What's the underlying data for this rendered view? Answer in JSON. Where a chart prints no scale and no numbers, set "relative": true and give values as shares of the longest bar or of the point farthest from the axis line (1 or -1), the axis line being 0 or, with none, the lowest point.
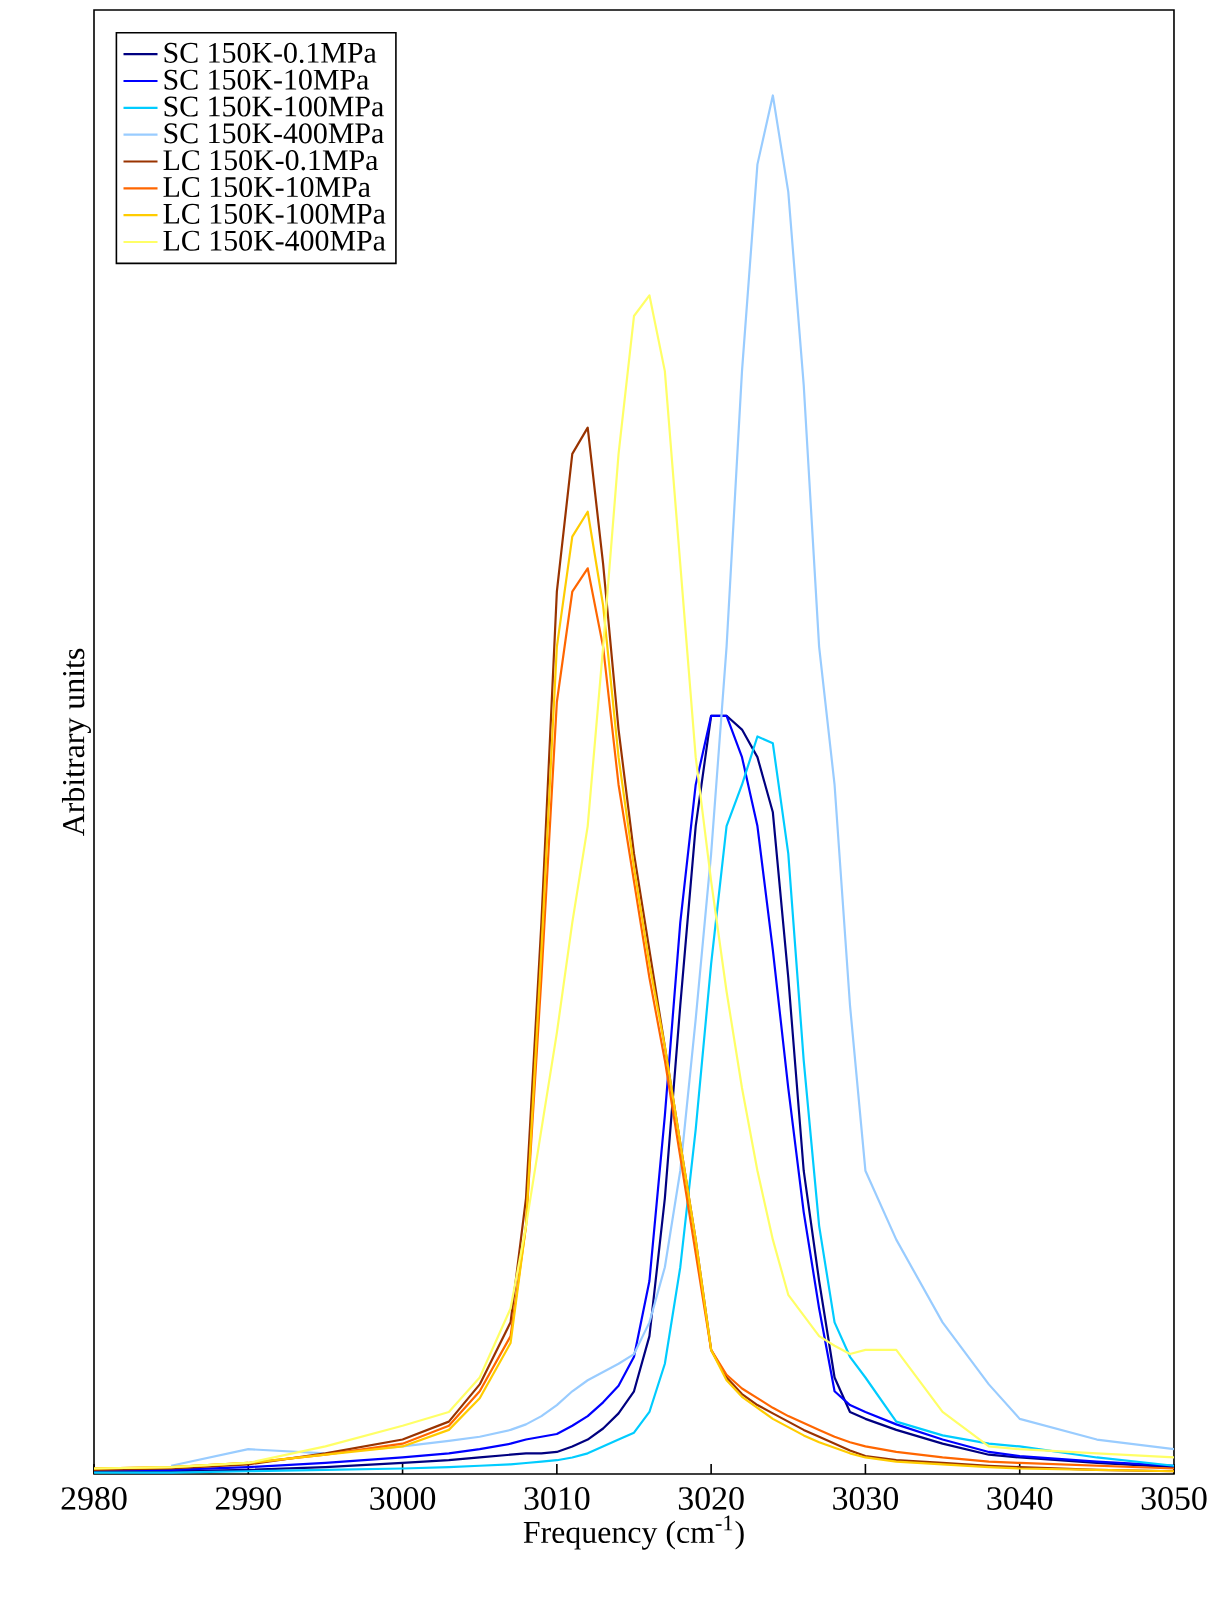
{
  "chart_data": {
    "type": "line",
    "relative": true,
    "xlabel": "Frequency (cm$^{-1}$)",
    "ylabel": "Arbitrary units",
    "legend": "top left",
    "xlim": [
      2980,
      3050
    ],
    "xticks": [
      2980,
      2990,
      3000,
      3010,
      3020,
      3030,
      3040,
      3050
    ],
    "x": [
      2980,
      2985,
      2990,
      2995,
      3000,
      3003,
      3005,
      3007,
      3008,
      3009,
      3010,
      3011,
      3012,
      3013,
      3014,
      3015,
      3016,
      3017,
      3018,
      3019,
      3020,
      3021,
      3022,
      3023,
      3024,
      3025,
      3026,
      3027,
      3028,
      3029,
      3030,
      3032,
      3035,
      3038,
      3040,
      3045,
      3050
    ],
    "series": [
      {
        "name": "SC 150K-0.1MPa",
        "color": "#000080",
        "values": [
          0.002,
          0.002,
          0.003,
          0.005,
          0.008,
          0.01,
          0.012,
          0.014,
          0.015,
          0.015,
          0.016,
          0.02,
          0.025,
          0.033,
          0.044,
          0.06,
          0.1,
          0.2,
          0.34,
          0.47,
          0.55,
          0.55,
          0.54,
          0.52,
          0.48,
          0.36,
          0.22,
          0.14,
          0.07,
          0.045,
          0.04,
          0.032,
          0.022,
          0.014,
          0.012,
          0.008,
          0.005
        ]
      },
      {
        "name": "SC 150K-10MPa",
        "color": "#0000ff",
        "values": [
          0.003,
          0.003,
          0.005,
          0.008,
          0.012,
          0.015,
          0.018,
          0.022,
          0.025,
          0.027,
          0.029,
          0.035,
          0.042,
          0.052,
          0.064,
          0.085,
          0.14,
          0.26,
          0.4,
          0.5,
          0.55,
          0.55,
          0.52,
          0.47,
          0.38,
          0.28,
          0.19,
          0.12,
          0.06,
          0.05,
          0.045,
          0.036,
          0.025,
          0.016,
          0.013,
          0.009,
          0.006
        ]
      },
      {
        "name": "SC 150K-100MPa",
        "color": "#00ccff",
        "values": [
          0.001,
          0.001,
          0.002,
          0.003,
          0.004,
          0.005,
          0.006,
          0.007,
          0.008,
          0.009,
          0.01,
          0.012,
          0.015,
          0.02,
          0.025,
          0.03,
          0.045,
          0.08,
          0.15,
          0.25,
          0.37,
          0.47,
          0.5,
          0.535,
          0.53,
          0.45,
          0.3,
          0.18,
          0.11,
          0.085,
          0.07,
          0.038,
          0.028,
          0.022,
          0.02,
          0.012,
          0.006
        ]
      },
      {
        "name": "SC 150K-400MPa",
        "color": "#99ccff",
        "values": [
          null,
          0.006,
          0.018,
          0.015,
          0.02,
          0.024,
          0.027,
          0.032,
          0.036,
          0.042,
          0.05,
          0.06,
          0.068,
          0.074,
          0.08,
          0.087,
          0.11,
          0.15,
          0.22,
          0.33,
          0.45,
          0.6,
          0.8,
          0.95,
          1.0,
          0.93,
          0.79,
          0.6,
          0.5,
          0.34,
          0.22,
          0.17,
          0.11,
          0.065,
          0.04,
          0.025,
          0.018
        ]
      },
      {
        "name": "LC 150K-0.1MPa",
        "color": "#993300",
        "values": [
          0.003,
          0.004,
          0.007,
          0.015,
          0.025,
          0.038,
          0.065,
          0.11,
          0.2,
          0.4,
          0.64,
          0.74,
          0.759,
          0.66,
          0.54,
          0.45,
          0.38,
          0.31,
          0.24,
          0.17,
          0.09,
          0.07,
          0.058,
          0.05,
          0.044,
          0.038,
          0.032,
          0.027,
          0.022,
          0.017,
          0.013,
          0.01,
          0.008,
          0.006,
          0.005,
          0.003,
          0.002
        ]
      },
      {
        "name": "LC 150K-10MPa",
        "color": "#ff6600",
        "values": [
          0.004,
          0.005,
          0.008,
          0.014,
          0.022,
          0.035,
          0.06,
          0.1,
          0.18,
          0.36,
          0.56,
          0.64,
          0.657,
          0.6,
          0.5,
          0.43,
          0.36,
          0.3,
          0.23,
          0.16,
          0.09,
          0.072,
          0.062,
          0.055,
          0.048,
          0.042,
          0.037,
          0.032,
          0.027,
          0.023,
          0.02,
          0.016,
          0.012,
          0.009,
          0.008,
          0.006,
          0.004
        ]
      },
      {
        "name": "LC 150K-100MPa",
        "color": "#ffcc00",
        "values": [
          0.004,
          0.005,
          0.008,
          0.014,
          0.02,
          0.032,
          0.055,
          0.095,
          0.18,
          0.38,
          0.6,
          0.68,
          0.698,
          0.63,
          0.52,
          0.44,
          0.37,
          0.31,
          0.24,
          0.17,
          0.09,
          0.068,
          0.056,
          0.048,
          0.04,
          0.034,
          0.028,
          0.023,
          0.019,
          0.015,
          0.012,
          0.009,
          0.007,
          0.005,
          0.004,
          0.003,
          0.002
        ]
      },
      {
        "name": "LC 150K-400MPa",
        "color": "#ffff66",
        "values": [
          0.004,
          0.005,
          0.008,
          0.02,
          0.035,
          0.045,
          0.07,
          0.12,
          0.18,
          0.25,
          0.32,
          0.4,
          0.47,
          0.6,
          0.74,
          0.84,
          0.855,
          0.8,
          0.66,
          0.52,
          0.43,
          0.35,
          0.28,
          0.22,
          0.17,
          0.13,
          0.115,
          0.1,
          0.093,
          0.087,
          0.09,
          0.09,
          0.045,
          0.02,
          0.018,
          0.015,
          0.012
        ]
      }
    ]
  }
}
